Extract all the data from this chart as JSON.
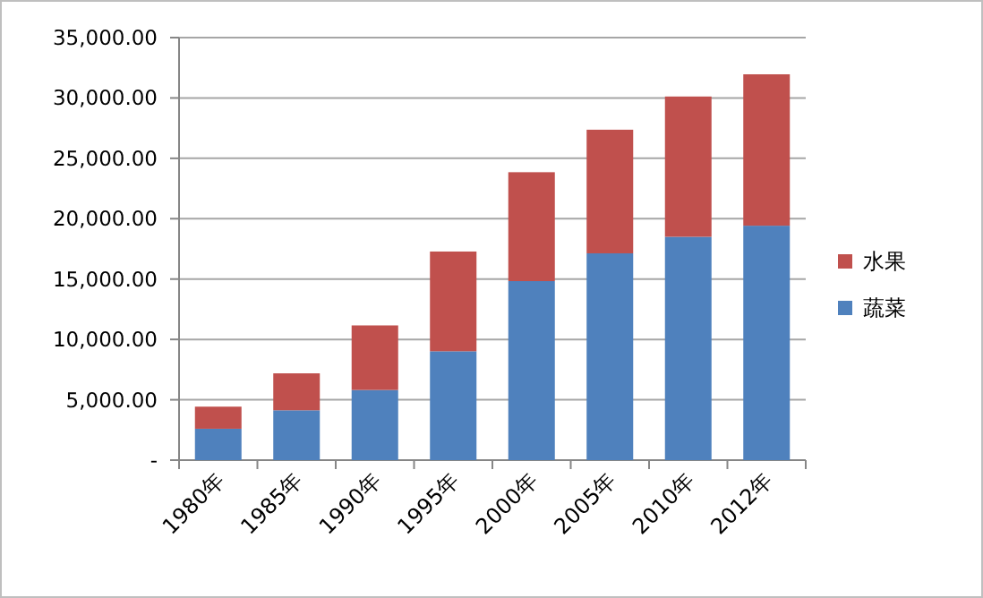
{
  "chart_data": {
    "type": "bar",
    "stacked": true,
    "categories": [
      "1980年",
      "1985年",
      "1990年",
      "1995年",
      "2000年",
      "2005年",
      "2010年",
      "2012年"
    ],
    "series": [
      {
        "name": "蔬菜",
        "color": "#4f81bd",
        "values": [
          2600,
          4130,
          5810,
          9020,
          14830,
          17130,
          18500,
          19420
        ]
      },
      {
        "name": "水果",
        "color": "#c0504d",
        "values": [
          1830,
          3060,
          5350,
          8260,
          9020,
          10240,
          11620,
          12540
        ]
      }
    ],
    "ylim": [
      0,
      35000
    ],
    "yticks": [
      {
        "value": 0,
        "label": "-"
      },
      {
        "value": 5000,
        "label": "5,000.00"
      },
      {
        "value": 10000,
        "label": "10,000.00"
      },
      {
        "value": 15000,
        "label": "15,000.00"
      },
      {
        "value": 20000,
        "label": "20,000.00"
      },
      {
        "value": 25000,
        "label": "25,000.00"
      },
      {
        "value": 30000,
        "label": "30,000.00"
      },
      {
        "value": 35000,
        "label": "35,000.00"
      }
    ],
    "grid": "y",
    "legend": "right"
  }
}
